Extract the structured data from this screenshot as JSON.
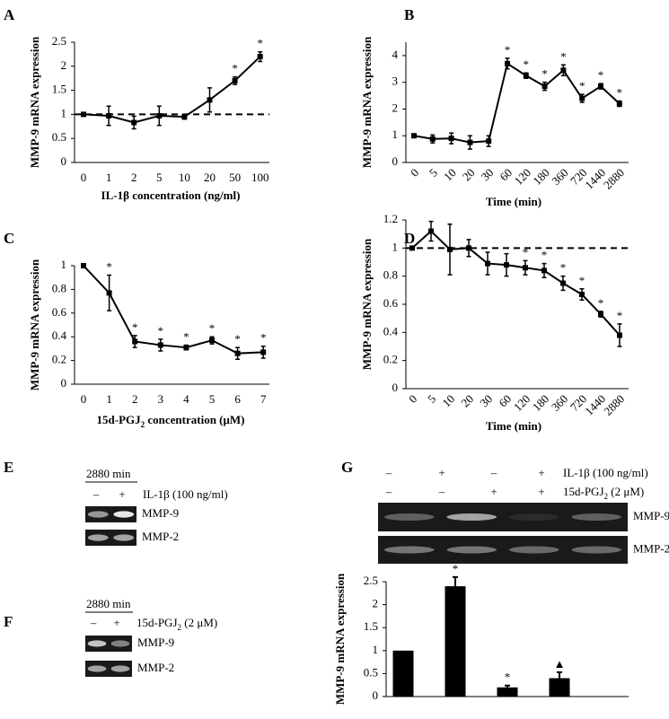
{
  "chart_data": [
    {
      "type": "line",
      "panel": "A",
      "ylabel": "MMP-9 mRNA expression",
      "xlabel": [
        "IL-1β concentration (ng/ml)"
      ],
      "categories": [
        "0",
        "1",
        "2",
        "5",
        "10",
        "20",
        "50",
        "100"
      ],
      "values": [
        1,
        0.97,
        0.83,
        0.97,
        0.95,
        1.3,
        1.7,
        2.2
      ],
      "errors": [
        0.02,
        0.2,
        0.13,
        0.2,
        0.05,
        0.25,
        0.08,
        0.1
      ],
      "annotations": [
        null,
        null,
        null,
        null,
        null,
        null,
        "*",
        "*"
      ],
      "ylim": [
        0,
        2.5
      ],
      "yticks": [
        0,
        0.5,
        1,
        1.5,
        2,
        2.5
      ],
      "reference_line": 1,
      "color": "#000000"
    },
    {
      "type": "line",
      "panel": "B",
      "ylabel": "MMP-9 mRNA expression",
      "xlabel": [
        "Time (min)"
      ],
      "categories": [
        "0",
        "5",
        "10",
        "20",
        "30",
        "60",
        "120",
        "180",
        "360",
        "720",
        "1440",
        "2880"
      ],
      "values": [
        1,
        0.88,
        0.9,
        0.75,
        0.8,
        3.7,
        3.25,
        2.85,
        3.45,
        2.4,
        2.85,
        2.2
      ],
      "errors": [
        0.05,
        0.15,
        0.2,
        0.25,
        0.2,
        0.2,
        0.1,
        0.15,
        0.2,
        0.15,
        0.1,
        0.1
      ],
      "annotations": [
        null,
        null,
        null,
        null,
        null,
        "*",
        "*",
        "*",
        "*",
        "*",
        "*",
        "*"
      ],
      "ylim": [
        0,
        4.5
      ],
      "yticks": [
        0,
        1,
        2,
        3,
        4
      ],
      "color": "#000000"
    },
    {
      "type": "line",
      "panel": "C",
      "ylabel": "MMP-9 mRNA expression",
      "xlabel": [
        "15d-PGJ",
        "2",
        " concentration (μM)"
      ],
      "categories": [
        "0",
        "1",
        "2",
        "3",
        "4",
        "5",
        "6",
        "7"
      ],
      "values": [
        1,
        0.77,
        0.36,
        0.33,
        0.31,
        0.37,
        0.26,
        0.27
      ],
      "errors": [
        0.01,
        0.15,
        0.05,
        0.05,
        0.02,
        0.03,
        0.05,
        0.05
      ],
      "annotations": [
        null,
        "*",
        "*",
        "*",
        "*",
        "*",
        "*",
        "*"
      ],
      "ylim": [
        0,
        1
      ],
      "yticks": [
        0,
        0.2,
        0.4,
        0.6,
        0.8,
        1
      ],
      "color": "#000000"
    },
    {
      "type": "line",
      "panel": "D",
      "ylabel": "MMP-9 mRNA expression",
      "xlabel": [
        "Time (min)"
      ],
      "categories": [
        "0",
        "5",
        "10",
        "20",
        "30",
        "60",
        "120",
        "180",
        "360",
        "720",
        "1440",
        "2880"
      ],
      "values": [
        1,
        1.12,
        0.99,
        1.0,
        0.89,
        0.88,
        0.86,
        0.84,
        0.75,
        0.67,
        0.53,
        0.38
      ],
      "errors": [
        0.01,
        0.07,
        0.18,
        0.06,
        0.08,
        0.08,
        0.05,
        0.05,
        0.05,
        0.04,
        0.02,
        0.08
      ],
      "annotations": [
        null,
        null,
        null,
        null,
        null,
        null,
        "*",
        "*",
        "*",
        "*",
        "*",
        "*"
      ],
      "ylim": [
        0,
        1.2
      ],
      "yticks": [
        0,
        0.2,
        0.4,
        0.6,
        0.8,
        1,
        1.2
      ],
      "reference_line": 1,
      "color": "#000000"
    },
    {
      "type": "bar",
      "ylabel": "MMP-9 mRNA expression",
      "categories": [
        null,
        null,
        null,
        null
      ],
      "values": [
        1,
        2.4,
        0.2,
        0.4
      ],
      "errors": [
        0,
        0.2,
        0.04,
        0.13
      ],
      "annotations": [
        null,
        "*",
        "*",
        "▲"
      ],
      "ylim": [
        0,
        2.5
      ],
      "yticks": [
        0,
        0.5,
        1,
        1.5,
        2,
        2.5
      ],
      "color": "#000000"
    }
  ],
  "gels": [
    {
      "panel": "E",
      "time": "2880 min",
      "signs": [
        [
          "–",
          "+"
        ]
      ],
      "treatments": [
        [
          "IL-1β (100 ng/ml)"
        ]
      ],
      "bands": [
        "MMP-9",
        "MMP-2"
      ]
    },
    {
      "panel": "F",
      "time": "2880 min",
      "signs": [
        [
          "–",
          "+"
        ]
      ],
      "treatments": [
        [
          "15d-PGJ",
          "2",
          " (2 μM)"
        ]
      ],
      "bands": [
        "MMP-9",
        "MMP-2"
      ]
    },
    {
      "panel": "G",
      "signs": [
        [
          "–",
          "+",
          "–",
          "+"
        ],
        [
          "–",
          "–",
          "+",
          "+"
        ]
      ],
      "treatments": [
        [
          "IL-1β (100 ng/ml)"
        ],
        [
          "15d-PGJ",
          "2",
          " (2 μM)"
        ]
      ],
      "bands": [
        "MMP-9",
        "MMP-2"
      ]
    }
  ]
}
